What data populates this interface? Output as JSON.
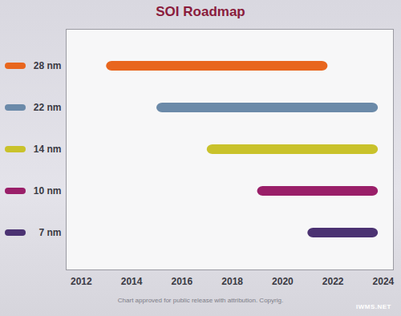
{
  "chart_data": {
    "type": "bar",
    "orientation": "horizontal",
    "title": "SOI Roadmap",
    "categories": [
      "28 nm",
      "22 nm",
      "14 nm",
      "10 nm",
      "7 nm"
    ],
    "start": [
      2013,
      2015,
      2017,
      2019,
      2021
    ],
    "end": [
      2021.8,
      2023.8,
      2023.8,
      2023.8,
      2023.8
    ],
    "colors": [
      "#e8661e",
      "#6b8aa9",
      "#c9c22b",
      "#9a1f69",
      "#4b3272"
    ],
    "xlim": [
      2011.4,
      2024.4
    ],
    "xticks": [
      2012,
      2014,
      2016,
      2018,
      2020,
      2022,
      2024
    ],
    "grid": false,
    "caption": "Chart approved for public release with attribution. Copyrig.",
    "watermark": "IWMS.NET"
  }
}
